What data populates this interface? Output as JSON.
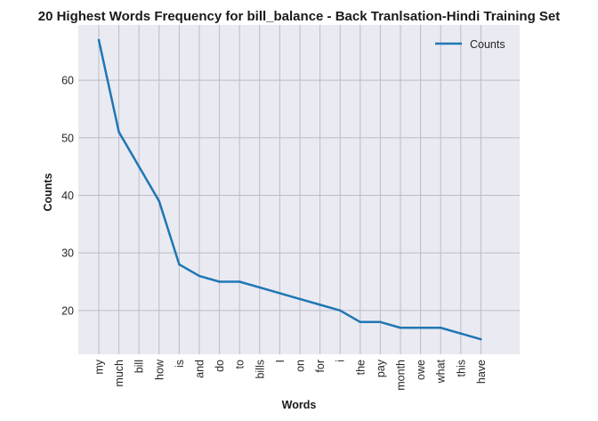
{
  "chart_data": {
    "type": "line",
    "title": "20 Highest Words Frequency for bill_balance - Back Tranlsation-Hindi Training Set",
    "xlabel": "Words",
    "ylabel": "Counts",
    "categories": [
      "my",
      "much",
      "bill",
      "how",
      "is",
      "and",
      "do",
      "to",
      "bills",
      "I",
      "on",
      "for",
      "i",
      "the",
      "pay",
      "month",
      "owe",
      "what",
      "this",
      "have"
    ],
    "series": [
      {
        "name": "Counts",
        "values": [
          67,
          51,
          45,
          39,
          28,
          26,
          25,
          25,
          24,
          23,
          22,
          21,
          20,
          18,
          18,
          17,
          17,
          17,
          16,
          15
        ],
        "color": "#1f77b4"
      }
    ],
    "y_ticks": [
      20,
      30,
      40,
      50,
      60
    ],
    "ylim": [
      12.4,
      69.6
    ],
    "grid": true,
    "legend_position": "top-right",
    "plot_background": "#eaeaf2",
    "grid_color": "#bcbcc6"
  }
}
